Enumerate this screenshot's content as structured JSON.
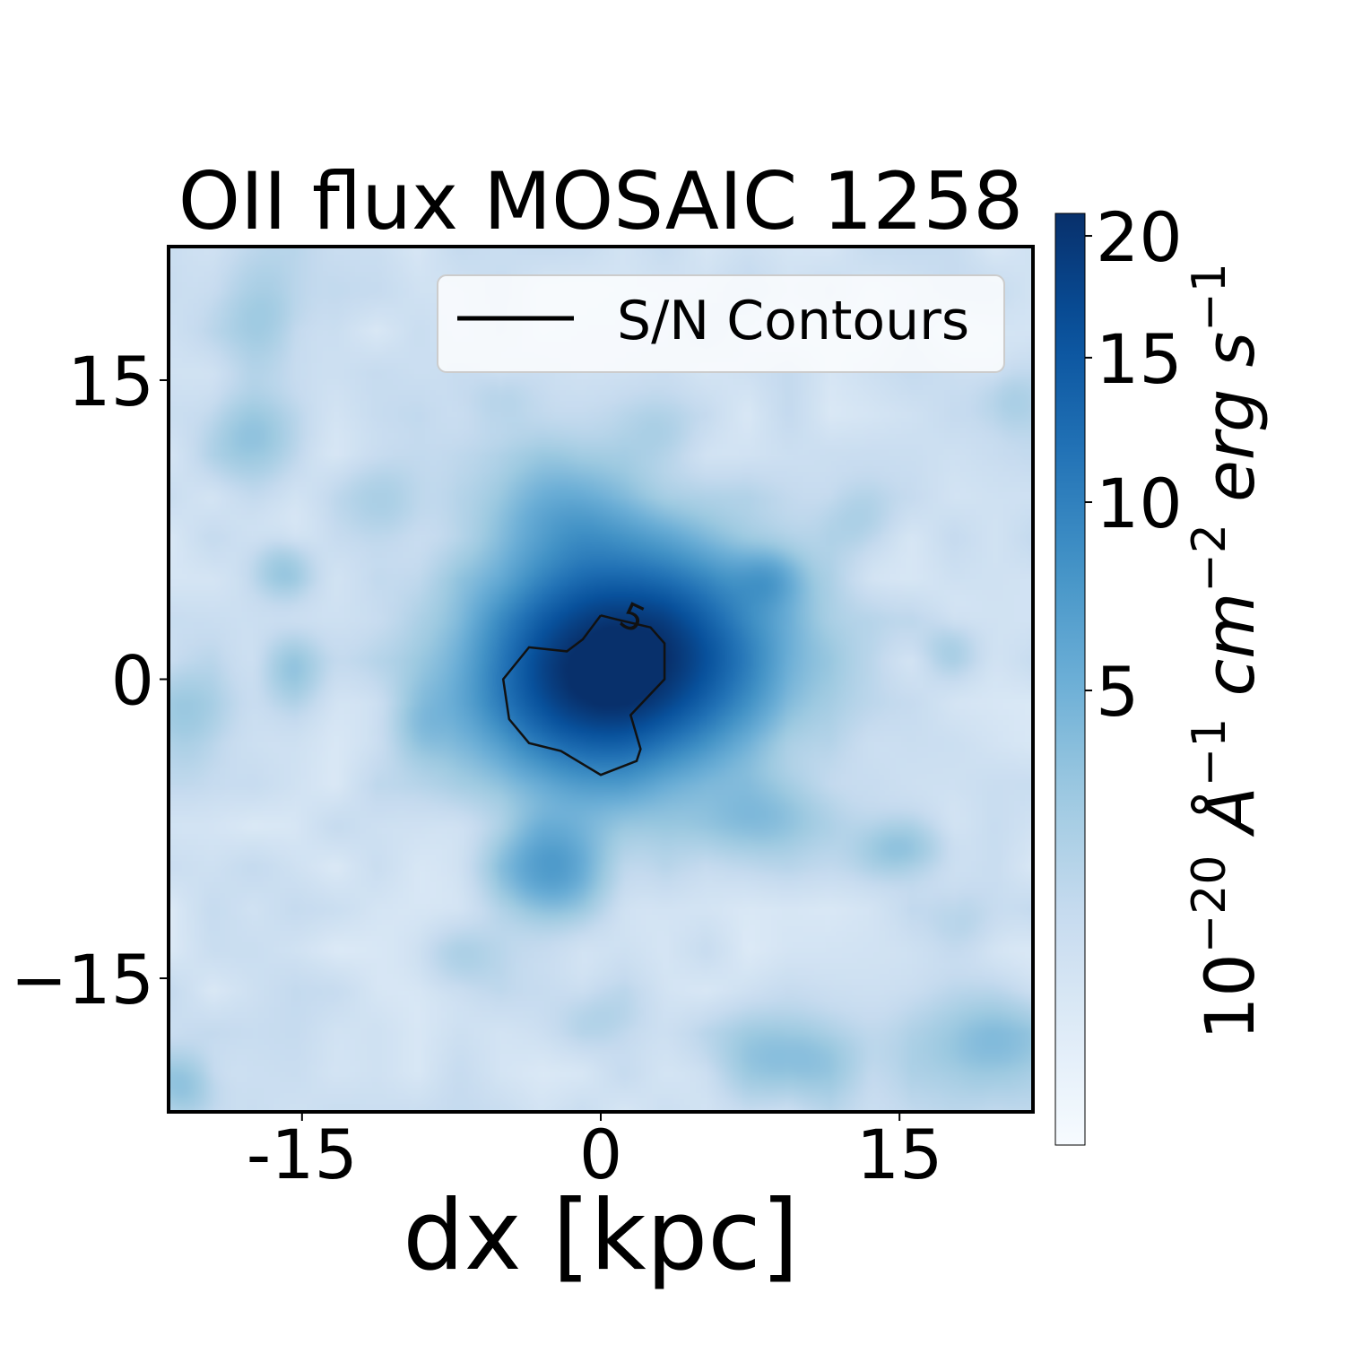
{
  "chart_data": {
    "type": "heatmap",
    "title": "OII flux MOSAIC 1258",
    "xlabel": "dx [kpc]",
    "ylabel": "",
    "xlim": [
      -21.7,
      21.7
    ],
    "ylim": [
      -21.7,
      21.7
    ],
    "x_ticks": [
      -15,
      0,
      15
    ],
    "x_tick_labels": [
      "-15",
      "0",
      "15"
    ],
    "y_ticks": [
      15,
      0,
      -15
    ],
    "y_tick_labels": [
      "15",
      "0",
      "−15"
    ],
    "colormap": "Blues",
    "colorbar": {
      "label_base": "10",
      "label_exp1": "−20",
      "label_angstrom": "Å",
      "label_exp2": "−1",
      "label_cm": "cm",
      "label_exp3": "−2",
      "label_erg": "erg",
      "label_s": "s",
      "label_exp4": "−1",
      "range": [
        0,
        21
      ],
      "scale": "sqrt",
      "ticks": [
        5,
        10,
        15,
        20
      ],
      "tick_labels": [
        "5",
        "10",
        "15",
        "20"
      ]
    },
    "blobs": [
      {
        "x": 0.5,
        "y": 1.0,
        "sx": 4.2,
        "sy": 3.8,
        "value": 19
      },
      {
        "x": -2.0,
        "y": -1.5,
        "sx": 3.2,
        "sy": 2.6,
        "value": 4
      },
      {
        "x": 5.5,
        "y": 1.5,
        "sx": 3.6,
        "sy": 3.0,
        "value": 5
      },
      {
        "x": -2.0,
        "y": 8.5,
        "sx": 2.5,
        "sy": 2.0,
        "value": 3.5
      },
      {
        "x": 8.5,
        "y": 5.0,
        "sx": 1.2,
        "sy": 1.0,
        "value": 3.5
      },
      {
        "x": -2.5,
        "y": -9.5,
        "sx": 1.8,
        "sy": 1.6,
        "value": 6
      },
      {
        "x": 8.0,
        "y": -7.0,
        "sx": 2.2,
        "sy": 1.3,
        "value": 2.5
      },
      {
        "x": 15.0,
        "y": -8.5,
        "sx": 1.5,
        "sy": 1.0,
        "value": 2.5
      },
      {
        "x": 9.5,
        "y": -19.0,
        "sx": 2.5,
        "sy": 1.5,
        "value": 3
      },
      {
        "x": 19.5,
        "y": -18.5,
        "sx": 2.5,
        "sy": 1.8,
        "value": 3
      },
      {
        "x": -17.5,
        "y": 12.0,
        "sx": 1.5,
        "sy": 1.5,
        "value": 2.5
      },
      {
        "x": -17.0,
        "y": 18.5,
        "sx": 1.5,
        "sy": 2.0,
        "value": 2
      },
      {
        "x": -16.0,
        "y": 5.5,
        "sx": 1.0,
        "sy": 1.0,
        "value": 2
      },
      {
        "x": -15.5,
        "y": 0.5,
        "sx": 1.0,
        "sy": 1.2,
        "value": 2
      },
      {
        "x": -21.0,
        "y": -2.0,
        "sx": 1.5,
        "sy": 2.0,
        "value": 2
      },
      {
        "x": -9.0,
        "y": -2.0,
        "sx": 1.0,
        "sy": 1.5,
        "value": 2
      },
      {
        "x": -21.0,
        "y": -20.5,
        "sx": 1.2,
        "sy": 1.2,
        "value": 2.5
      },
      {
        "x": 20.5,
        "y": 14.0,
        "sx": 1.2,
        "sy": 1.2,
        "value": 1.5
      },
      {
        "x": 17.5,
        "y": 1.5,
        "sx": 1.0,
        "sy": 1.0,
        "value": 1.5
      },
      {
        "x": -11.0,
        "y": 9.0,
        "sx": 1.5,
        "sy": 1.5,
        "value": 1.5
      },
      {
        "x": 3.0,
        "y": 12.5,
        "sx": 1.2,
        "sy": 1.2,
        "value": 1.2
      },
      {
        "x": -5.0,
        "y": 14.0,
        "sx": 1.2,
        "sy": 1.2,
        "value": 1.2
      },
      {
        "x": 13.0,
        "y": 8.0,
        "sx": 1.2,
        "sy": 1.2,
        "value": 1.2
      },
      {
        "x": -7.0,
        "y": -14.0,
        "sx": 1.4,
        "sy": 1.2,
        "value": 1.2
      },
      {
        "x": 18.0,
        "y": -12.0,
        "sx": 1.2,
        "sy": 1.2,
        "value": 1.2
      },
      {
        "x": 0.0,
        "y": -17.0,
        "sx": 1.5,
        "sy": 1.0,
        "value": 1.0
      }
    ],
    "background_level": 1.0,
    "contour": {
      "level_label": "5",
      "label_x": 1.6,
      "label_y": 3.1,
      "points": [
        [
          0.0,
          3.2
        ],
        [
          0.8,
          3.0
        ],
        [
          2.5,
          2.6
        ],
        [
          3.2,
          1.8
        ],
        [
          3.2,
          0.0
        ],
        [
          1.5,
          -1.8
        ],
        [
          2.0,
          -3.5
        ],
        [
          1.8,
          -4.1
        ],
        [
          0.0,
          -4.8
        ],
        [
          -2.0,
          -3.6
        ],
        [
          -3.6,
          -3.2
        ],
        [
          -4.6,
          -2.0
        ],
        [
          -4.9,
          0.0
        ],
        [
          -3.6,
          1.6
        ],
        [
          -1.7,
          1.4
        ],
        [
          -0.9,
          2.0
        ],
        [
          0.0,
          3.2
        ]
      ]
    },
    "legend": {
      "label": "S/N Contours",
      "position": "upper-right"
    }
  }
}
